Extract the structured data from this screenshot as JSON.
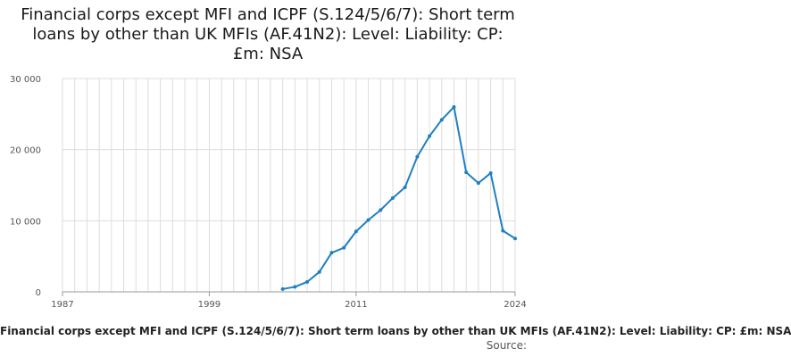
{
  "title": "Financial corps except MFI and ICPF (S.124/5/6/7): Short term loans by other than UK MFIs (AF.41N2): Level: Liability: CP: £m: NSA",
  "legend_text": "Financial corps except MFI and ICPF (S.124/5/6/7): Short term loans by other than UK MFIs (AF.41N2): Level: Liability: CP: £m: NSA",
  "source_label": "Source:",
  "colors": {
    "series": "#1f80c0",
    "grid": "#dddddd",
    "axis": "#999999"
  },
  "chart_data": {
    "type": "line",
    "xlim": [
      1987,
      2024
    ],
    "ylim": [
      0,
      30000
    ],
    "xticks": [
      1987,
      1999,
      2011,
      2024
    ],
    "xtick_labels": [
      "1987",
      "1999",
      "2011",
      "2024"
    ],
    "yticks": [
      0,
      10000,
      20000,
      30000
    ],
    "ytick_labels": [
      "0",
      "10 000",
      "20 000",
      "30 000"
    ],
    "grid": true,
    "legend_position": "bottom",
    "series": [
      {
        "x": [
          2005,
          2006,
          2007,
          2008,
          2009,
          2010,
          2011,
          2012,
          2013,
          2014,
          2015,
          2016,
          2017,
          2018,
          2019,
          2020,
          2021,
          2022,
          2023,
          2024
        ],
        "y": [
          400,
          700,
          1400,
          2800,
          5500,
          6200,
          8500,
          10100,
          11500,
          13200,
          14700,
          19000,
          21900,
          24200,
          26000,
          16800,
          15300,
          16700,
          8600,
          7500
        ]
      }
    ]
  }
}
